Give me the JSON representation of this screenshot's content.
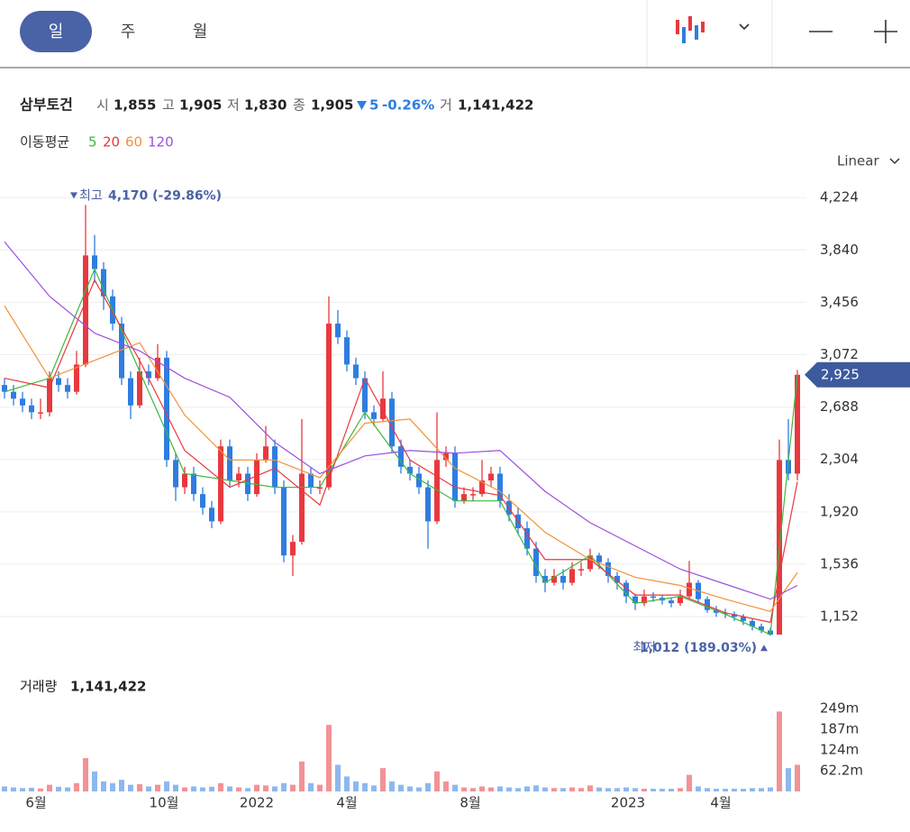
{
  "tabs": {
    "items": [
      "일",
      "주",
      "월"
    ],
    "selected": 0
  },
  "info": {
    "name": "삼부토건",
    "fields": [
      {
        "label": "시",
        "value": "1,855"
      },
      {
        "label": "고",
        "value": "1,905"
      },
      {
        "label": "저",
        "value": "1,830"
      },
      {
        "label": "종",
        "value": "1,905"
      }
    ],
    "change": "5",
    "change_pct": "-0.26%",
    "volume_label": "거",
    "volume": "1,141,422"
  },
  "ma_legend": "이동평균",
  "scale_mode": "Linear",
  "chart_data": {
    "type": "candlestick",
    "up_color": "#e8393f",
    "down_color": "#2f7de1",
    "xlim": [
      0,
      89
    ],
    "xticks": [
      {
        "value": 4,
        "label": "6월"
      },
      {
        "value": 18.2,
        "label": "10월"
      },
      {
        "value": 28.5,
        "label": "2022"
      },
      {
        "value": 38.5,
        "label": "4월"
      },
      {
        "value": 52.2,
        "label": "8월"
      },
      {
        "value": 69.7,
        "label": "2023"
      },
      {
        "value": 80,
        "label": "4월"
      }
    ],
    "ylim": [
      782,
      4384
    ],
    "yticks": [
      {
        "value": 1152,
        "label": "1,152"
      },
      {
        "value": 1536,
        "label": "1,536"
      },
      {
        "value": 1920,
        "label": "1,920"
      },
      {
        "value": 2304,
        "label": "2,304"
      },
      {
        "value": 2688,
        "label": "2,688"
      },
      {
        "value": 3072,
        "label": "3,072"
      },
      {
        "value": 3456,
        "label": "3,456"
      },
      {
        "value": 3840,
        "label": "3,840"
      },
      {
        "value": 4224,
        "label": "4,224"
      }
    ],
    "grid": true,
    "candles": [
      [
        2850,
        2900,
        2750,
        2800
      ],
      [
        2800,
        2850,
        2700,
        2750
      ],
      [
        2750,
        2800,
        2650,
        2700
      ],
      [
        2700,
        2750,
        2600,
        2650
      ],
      [
        2650,
        2750,
        2600,
        2650
      ],
      [
        2650,
        2950,
        2620,
        2900
      ],
      [
        2900,
        2950,
        2800,
        2850
      ],
      [
        2850,
        2900,
        2750,
        2800
      ],
      [
        2800,
        3100,
        2780,
        3000
      ],
      [
        3000,
        4170,
        2980,
        3800
      ],
      [
        3800,
        3950,
        3600,
        3700
      ],
      [
        3700,
        3750,
        3400,
        3500
      ],
      [
        3500,
        3550,
        3250,
        3300
      ],
      [
        3300,
        3350,
        2850,
        2900
      ],
      [
        2900,
        2950,
        2600,
        2700
      ],
      [
        2700,
        3050,
        2680,
        2950
      ],
      [
        2950,
        3000,
        2850,
        2900
      ],
      [
        2900,
        3150,
        2880,
        3050
      ],
      [
        3050,
        3100,
        2250,
        2300
      ],
      [
        2300,
        2350,
        2000,
        2100
      ],
      [
        2100,
        2250,
        2050,
        2200
      ],
      [
        2200,
        2250,
        2000,
        2050
      ],
      [
        2050,
        2100,
        1900,
        1950
      ],
      [
        1950,
        2000,
        1800,
        1850
      ],
      [
        1850,
        2450,
        1830,
        2400
      ],
      [
        2400,
        2450,
        2100,
        2150
      ],
      [
        2150,
        2250,
        2100,
        2200
      ],
      [
        2200,
        2250,
        2000,
        2050
      ],
      [
        2050,
        2350,
        2030,
        2300
      ],
      [
        2300,
        2550,
        2280,
        2400
      ],
      [
        2400,
        2450,
        2050,
        2100
      ],
      [
        2100,
        2150,
        1550,
        1600
      ],
      [
        1600,
        1750,
        1450,
        1700
      ],
      [
        1700,
        2600,
        1680,
        2200
      ],
      [
        2200,
        2250,
        2050,
        2100
      ],
      [
        2100,
        2150,
        2050,
        2100
      ],
      [
        2100,
        3500,
        2080,
        3300
      ],
      [
        3300,
        3400,
        3150,
        3200
      ],
      [
        3200,
        3250,
        2950,
        3000
      ],
      [
        3000,
        3050,
        2850,
        2900
      ],
      [
        2900,
        2950,
        2600,
        2650
      ],
      [
        2650,
        2700,
        2550,
        2600
      ],
      [
        2600,
        2950,
        2580,
        2750
      ],
      [
        2750,
        2800,
        2350,
        2400
      ],
      [
        2400,
        2450,
        2200,
        2250
      ],
      [
        2250,
        2300,
        2150,
        2200
      ],
      [
        2200,
        2250,
        2050,
        2100
      ],
      [
        2100,
        2150,
        1650,
        1850
      ],
      [
        1850,
        2650,
        1830,
        2300
      ],
      [
        2300,
        2400,
        2250,
        2350
      ],
      [
        2350,
        2400,
        1950,
        2000
      ],
      [
        2000,
        2100,
        1980,
        2050
      ],
      [
        2050,
        2100,
        2000,
        2050
      ],
      [
        2050,
        2300,
        2030,
        2150
      ],
      [
        2150,
        2250,
        2100,
        2200
      ],
      [
        2200,
        2250,
        1950,
        2000
      ],
      [
        2000,
        2050,
        1850,
        1900
      ],
      [
        1900,
        1950,
        1750,
        1800
      ],
      [
        1800,
        1850,
        1600,
        1650
      ],
      [
        1650,
        1700,
        1400,
        1450
      ],
      [
        1450,
        1500,
        1330,
        1400
      ],
      [
        1400,
        1500,
        1380,
        1450
      ],
      [
        1450,
        1500,
        1350,
        1400
      ],
      [
        1400,
        1550,
        1380,
        1500
      ],
      [
        1500,
        1550,
        1450,
        1500
      ],
      [
        1500,
        1650,
        1480,
        1600
      ],
      [
        1600,
        1620,
        1500,
        1550
      ],
      [
        1550,
        1580,
        1400,
        1450
      ],
      [
        1450,
        1480,
        1350,
        1400
      ],
      [
        1400,
        1420,
        1250,
        1300
      ],
      [
        1300,
        1320,
        1200,
        1250
      ],
      [
        1250,
        1350,
        1230,
        1300
      ],
      [
        1300,
        1330,
        1260,
        1290
      ],
      [
        1290,
        1310,
        1240,
        1270
      ],
      [
        1270,
        1290,
        1220,
        1250
      ],
      [
        1250,
        1350,
        1230,
        1300
      ],
      [
        1300,
        1560,
        1280,
        1400
      ],
      [
        1400,
        1420,
        1250,
        1280
      ],
      [
        1280,
        1300,
        1180,
        1200
      ],
      [
        1200,
        1230,
        1150,
        1180
      ],
      [
        1180,
        1210,
        1140,
        1170
      ],
      [
        1170,
        1190,
        1120,
        1150
      ],
      [
        1150,
        1170,
        1090,
        1120
      ],
      [
        1120,
        1140,
        1050,
        1080
      ],
      [
        1080,
        1100,
        1030,
        1050
      ],
      [
        1050,
        1070,
        1012,
        1020
      ],
      [
        1020,
        2450,
        1020,
        2300
      ],
      [
        2300,
        2600,
        2150,
        2200
      ],
      [
        2200,
        2960,
        2150,
        2925
      ]
    ],
    "series": [
      {
        "name": "5",
        "color": "#3cb93c",
        "x": [
          0,
          5,
          10,
          15,
          20,
          25,
          30,
          35,
          40,
          45,
          50,
          55,
          60,
          65,
          70,
          75,
          80,
          85,
          88
        ],
        "values": [
          2800,
          2900,
          3700,
          2950,
          2200,
          2150,
          2100,
          2100,
          2650,
          2200,
          2000,
          2000,
          1400,
          1600,
          1250,
          1300,
          1170,
          1020,
          2925
        ]
      },
      {
        "name": "20",
        "color": "#e8393f",
        "x": [
          0,
          5,
          10,
          15,
          20,
          25,
          30,
          35,
          40,
          45,
          50,
          55,
          60,
          65,
          70,
          75,
          80,
          85,
          88
        ],
        "values": [
          2900,
          2830,
          3620,
          3030,
          2370,
          2100,
          2240,
          1970,
          2900,
          2300,
          2100,
          2040,
          1570,
          1570,
          1310,
          1310,
          1180,
          1110,
          2140
        ]
      },
      {
        "name": "60",
        "color": "#f0923a",
        "x": [
          0,
          5,
          10,
          15,
          20,
          25,
          30,
          35,
          40,
          45,
          50,
          55,
          60,
          65,
          70,
          75,
          80,
          85,
          88
        ],
        "values": [
          3430,
          2900,
          3030,
          3160,
          2630,
          2300,
          2300,
          2170,
          2570,
          2600,
          2240,
          2070,
          1770,
          1570,
          1440,
          1380,
          1280,
          1190,
          1475
        ]
      },
      {
        "name": "120",
        "color": "#9b4fe0",
        "x": [
          0,
          5,
          10,
          15,
          20,
          25,
          30,
          35,
          40,
          45,
          50,
          55,
          60,
          65,
          70,
          75,
          80,
          85,
          88
        ],
        "values": [
          3900,
          3500,
          3230,
          3100,
          2900,
          2760,
          2430,
          2200,
          2330,
          2370,
          2350,
          2370,
          2070,
          1840,
          1670,
          1500,
          1390,
          1280,
          1380
        ]
      }
    ],
    "last_price": {
      "value": 2925,
      "label": "2,925"
    },
    "high_annotation": {
      "label": "최고",
      "text": "4,170 (-29.86%)",
      "value": 4170,
      "index": 9
    },
    "low_annotation": {
      "label": "최저",
      "text": "1,012 (189.03%)",
      "value": 1012,
      "index": 85
    },
    "volume": {
      "title": "거래량",
      "value_text": "1,141,422",
      "ylim": [
        0,
        360000000
      ],
      "yticks": [
        {
          "value": 62200000,
          "label": "62.2m"
        },
        {
          "value": 124000000,
          "label": "124m"
        },
        {
          "value": 187000000,
          "label": "187m"
        },
        {
          "value": 249000000,
          "label": "249m"
        }
      ],
      "values": [
        15000000,
        12000000,
        10000000,
        11000000,
        9000000,
        20000000,
        14000000,
        12000000,
        25000000,
        100000000,
        60000000,
        30000000,
        25000000,
        35000000,
        20000000,
        22000000,
        15000000,
        20000000,
        30000000,
        20000000,
        12000000,
        15000000,
        12000000,
        14000000,
        25000000,
        15000000,
        12000000,
        10000000,
        20000000,
        18000000,
        15000000,
        25000000,
        20000000,
        90000000,
        25000000,
        20000000,
        200000000,
        80000000,
        45000000,
        30000000,
        25000000,
        18000000,
        70000000,
        30000000,
        20000000,
        15000000,
        12000000,
        25000000,
        60000000,
        30000000,
        20000000,
        12000000,
        10000000,
        15000000,
        12000000,
        15000000,
        12000000,
        10000000,
        15000000,
        18000000,
        12000000,
        10000000,
        10000000,
        12000000,
        10000000,
        18000000,
        12000000,
        10000000,
        10000000,
        12000000,
        10000000,
        8000000,
        8000000,
        8000000,
        8000000,
        10000000,
        50000000,
        15000000,
        10000000,
        8000000,
        8000000,
        8000000,
        8000000,
        10000000,
        10000000,
        12000000,
        240000000,
        70000000,
        80000000
      ]
    }
  }
}
